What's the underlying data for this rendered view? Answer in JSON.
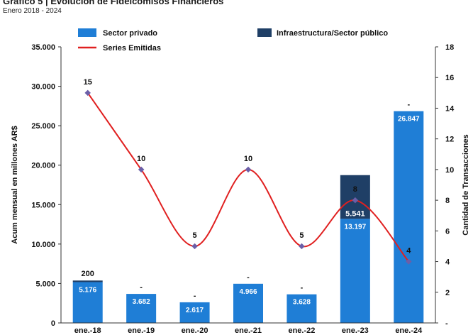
{
  "title": "Gráfico 5 | Evolución de Fideicomisos Financieros",
  "subtitle": "Enero 2018 - 2024",
  "colors": {
    "private": "#1f7ed6",
    "public": "#1f3f66",
    "line": "#e02020",
    "marker": "#6b5fa8"
  },
  "chart_data": {
    "type": "bar",
    "categories": [
      "ene.-18",
      "ene.-19",
      "ene.-20",
      "ene.-21",
      "ene.-22",
      "ene.-23",
      "ene.-24"
    ],
    "series": [
      {
        "name": "Sector privado",
        "values": [
          5176,
          3682,
          2617,
          4966,
          3628,
          13197,
          26847
        ],
        "labels": [
          "5.176",
          "3.682",
          "2.617",
          "4.966",
          "3.628",
          "13.197",
          "26.847"
        ]
      },
      {
        "name": "Infraestructura/Sector público",
        "values": [
          200,
          0,
          0,
          0,
          0,
          5541,
          0
        ],
        "labels": [
          "200",
          "-",
          "-",
          "-",
          "-",
          "5.541",
          "-"
        ]
      },
      {
        "name": "Series Emitidas",
        "type": "line",
        "axis": "right",
        "values": [
          15,
          10,
          5,
          10,
          5,
          8,
          4
        ],
        "labels": [
          "15",
          "10",
          "5",
          "10",
          "5",
          "8",
          "4"
        ]
      }
    ],
    "ylabel": "Acum mensual en millones AR$",
    "y2label": "Cantidad de Transacciones",
    "ylim": [
      0,
      35000
    ],
    "y2lim": [
      0,
      18
    ],
    "yticks": [
      "0",
      "5.000",
      "10.000",
      "15.000",
      "20.000",
      "25.000",
      "30.000",
      "35.000"
    ],
    "y2ticks": [
      "-",
      "2",
      "4",
      "6",
      "8",
      "10",
      "12",
      "14",
      "16",
      "18"
    ],
    "legend_position": "top",
    "grid": false
  }
}
